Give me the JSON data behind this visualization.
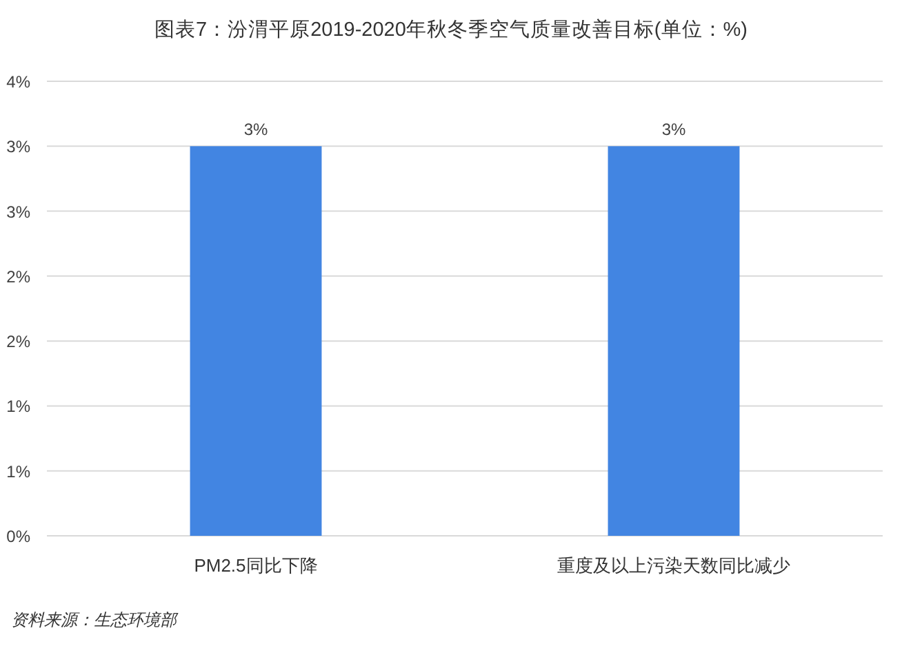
{
  "chart_data": {
    "type": "bar",
    "title": "图表7：汾渭平原2019-2020年秋冬季空气质量改善目标(单位：%)",
    "categories": [
      "PM2.5同比下降",
      "重度及以上污染天数同比减少"
    ],
    "values": [
      3,
      3
    ],
    "color": "#4285e2",
    "ylim": [
      0,
      3.5
    ],
    "yticks": [
      {
        "value": 0,
        "label": "0%"
      },
      {
        "value": 0.5,
        "label": "1%"
      },
      {
        "value": 1,
        "label": "1%"
      },
      {
        "value": 1.5,
        "label": "2%"
      },
      {
        "value": 2,
        "label": "2%"
      },
      {
        "value": 2.5,
        "label": "3%"
      },
      {
        "value": 3,
        "label": "3%"
      },
      {
        "value": 3.5,
        "label": "4%"
      }
    ],
    "grid": "y",
    "value_labels": [
      "3%",
      "3%"
    ],
    "annotations": [
      "资料来源：生态环境部"
    ]
  }
}
